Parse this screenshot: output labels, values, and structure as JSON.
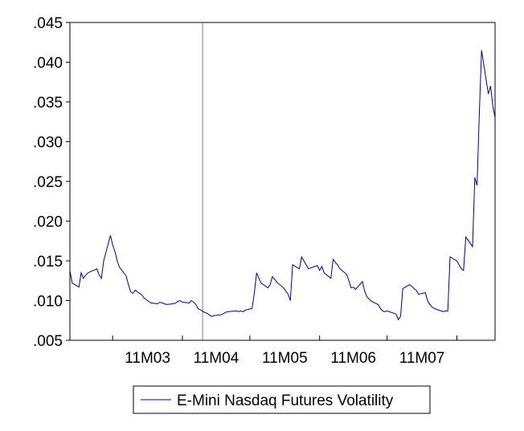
{
  "chart_data": {
    "type": "line",
    "title": "",
    "xlabel": "",
    "ylabel": "",
    "ylim": [
      0.005,
      0.045
    ],
    "y_ticks": [
      ".005",
      ".010",
      ".015",
      ".020",
      ".025",
      ".030",
      ".035",
      ".040",
      ".045"
    ],
    "x_tick_labels": [
      "11M03",
      "11M04",
      "11M05",
      "11M06",
      "11M07"
    ],
    "x_period_boundaries": [
      "2011-03-01",
      "2011-04-01",
      "2011-05-01",
      "2011-06-01",
      "2011-07-01",
      "2011-08-01"
    ],
    "x_range": [
      "2011-02-10",
      "2011-08-18"
    ],
    "reference_line_x": "2011-04-10",
    "legend_position": "bottom-center",
    "grid": false,
    "colors": {
      "series": "#00008b",
      "reference_line": "#808080",
      "axes": "#000000",
      "background": "#ffffff"
    },
    "series": [
      {
        "name": "E-Mini Nasdaq Futures Volatility",
        "x": [
          "2011-02-10",
          "2011-02-11",
          "2011-02-14",
          "2011-02-15",
          "2011-02-16",
          "2011-02-17",
          "2011-02-18",
          "2011-02-22",
          "2011-02-23",
          "2011-02-24",
          "2011-02-25",
          "2011-02-28",
          "2011-03-01",
          "2011-03-02",
          "2011-03-03",
          "2011-03-04",
          "2011-03-07",
          "2011-03-08",
          "2011-03-09",
          "2011-03-10",
          "2011-03-11",
          "2011-03-14",
          "2011-03-15",
          "2011-03-16",
          "2011-03-17",
          "2011-03-18",
          "2011-03-21",
          "2011-03-22",
          "2011-03-23",
          "2011-03-24",
          "2011-03-25",
          "2011-03-28",
          "2011-03-29",
          "2011-03-30",
          "2011-03-31",
          "2011-04-01",
          "2011-04-04",
          "2011-04-05",
          "2011-04-06",
          "2011-04-07",
          "2011-04-08",
          "2011-04-11",
          "2011-04-12",
          "2011-04-13",
          "2011-04-14",
          "2011-04-15",
          "2011-04-18",
          "2011-04-19",
          "2011-04-20",
          "2011-04-21",
          "2011-04-25",
          "2011-04-26",
          "2011-04-27",
          "2011-04-28",
          "2011-04-29",
          "2011-05-02",
          "2011-05-03",
          "2011-05-04",
          "2011-05-05",
          "2011-05-06",
          "2011-05-09",
          "2011-05-10",
          "2011-05-11",
          "2011-05-12",
          "2011-05-13",
          "2011-05-16",
          "2011-05-17",
          "2011-05-18",
          "2011-05-19",
          "2011-05-20",
          "2011-05-23",
          "2011-05-24",
          "2011-05-25",
          "2011-05-26",
          "2011-05-27",
          "2011-05-31",
          "2011-06-01",
          "2011-06-02",
          "2011-06-03",
          "2011-06-06",
          "2011-06-07",
          "2011-06-08",
          "2011-06-09",
          "2011-06-10",
          "2011-06-13",
          "2011-06-14",
          "2011-06-15",
          "2011-06-16",
          "2011-06-17",
          "2011-06-20",
          "2011-06-21",
          "2011-06-22",
          "2011-06-23",
          "2011-06-24",
          "2011-06-27",
          "2011-06-28",
          "2011-06-29",
          "2011-06-30",
          "2011-07-01",
          "2011-07-05",
          "2011-07-06",
          "2011-07-07",
          "2011-07-08",
          "2011-07-11",
          "2011-07-12",
          "2011-07-13",
          "2011-07-14",
          "2011-07-15",
          "2011-07-18",
          "2011-07-19",
          "2011-07-20",
          "2011-07-21",
          "2011-07-22",
          "2011-07-25",
          "2011-07-26",
          "2011-07-27",
          "2011-07-28",
          "2011-07-29",
          "2011-08-01",
          "2011-08-02",
          "2011-08-03",
          "2011-08-04",
          "2011-08-05",
          "2011-08-08",
          "2011-08-09",
          "2011-08-10",
          "2011-08-11",
          "2011-08-12",
          "2011-08-15",
          "2011-08-16",
          "2011-08-17",
          "2011-08-18"
        ],
        "values": [
          0.0138,
          0.0122,
          0.0117,
          0.0135,
          0.0128,
          0.0132,
          0.0135,
          0.014,
          0.0132,
          0.0128,
          0.015,
          0.0182,
          0.017,
          0.0162,
          0.015,
          0.0142,
          0.0131,
          0.012,
          0.0111,
          0.0109,
          0.0113,
          0.0107,
          0.0103,
          0.0101,
          0.0099,
          0.0097,
          0.0096,
          0.0098,
          0.0097,
          0.0096,
          0.0095,
          0.0096,
          0.0097,
          0.0099,
          0.01,
          0.0098,
          0.0097,
          0.01,
          0.0098,
          0.0095,
          0.009,
          0.0085,
          0.0084,
          0.0082,
          0.008,
          0.0081,
          0.0082,
          0.0083,
          0.0085,
          0.0086,
          0.0087,
          0.0086,
          0.0087,
          0.0086,
          0.0088,
          0.009,
          0.011,
          0.0135,
          0.0128,
          0.0122,
          0.0116,
          0.012,
          0.013,
          0.0127,
          0.0123,
          0.0116,
          0.0112,
          0.0108,
          0.01,
          0.0145,
          0.014,
          0.0155,
          0.015,
          0.0145,
          0.014,
          0.0144,
          0.0138,
          0.0143,
          0.0135,
          0.0128,
          0.0152,
          0.0148,
          0.0145,
          0.014,
          0.0133,
          0.0125,
          0.0116,
          0.0117,
          0.0114,
          0.0124,
          0.0112,
          0.0105,
          0.0102,
          0.0099,
          0.0095,
          0.009,
          0.0087,
          0.0086,
          0.0087,
          0.0083,
          0.0076,
          0.008,
          0.0115,
          0.012,
          0.0118,
          0.0115,
          0.0113,
          0.0108,
          0.011,
          0.01,
          0.0095,
          0.0092,
          0.009,
          0.0087,
          0.0086,
          0.0087,
          0.0087,
          0.0155,
          0.015,
          0.0145,
          0.014,
          0.0138,
          0.018,
          0.0168,
          0.0255,
          0.0245,
          0.0335,
          0.0415,
          0.036,
          0.037,
          0.0345,
          0.033
        ]
      }
    ]
  }
}
